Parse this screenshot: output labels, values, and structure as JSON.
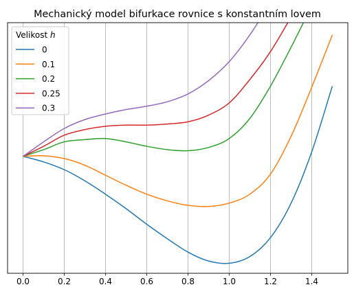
{
  "chart_data": {
    "type": "line",
    "title": "Mechanický model bifurkace rovnice s konstantním lovem",
    "xlabel": "",
    "ylabel": "",
    "xlim": [
      -0.075,
      1.575
    ],
    "ylim": [
      -1.05,
      1.2
    ],
    "x_ticks": [
      0.0,
      0.2,
      0.4,
      0.6,
      0.8,
      1.0,
      1.2,
      1.4
    ],
    "x_tick_labels": [
      "0.0",
      "0.2",
      "0.4",
      "0.6",
      "0.8",
      "1.0",
      "1.2",
      "1.4"
    ],
    "y_ticks_visible": false,
    "grid": "vertical",
    "legend": {
      "title_prefix": "Velikost ",
      "title_var": "h",
      "position": "top-left"
    },
    "series": [
      {
        "name": "0",
        "color": "#1f77b4",
        "x": [
          0,
          0.1,
          0.2,
          0.3,
          0.4,
          0.5,
          0.6,
          0.7,
          0.8,
          0.9,
          1.0,
          1.1,
          1.2,
          1.3,
          1.4,
          1.5
        ],
        "y": [
          0,
          -0.05,
          -0.12,
          -0.22,
          -0.34,
          -0.47,
          -0.61,
          -0.74,
          -0.86,
          -0.94,
          -0.96,
          -0.9,
          -0.73,
          -0.42,
          0.04,
          0.63
        ]
      },
      {
        "name": "0.1",
        "color": "#ff7f0e",
        "x": [
          0,
          0.1,
          0.2,
          0.3,
          0.4,
          0.5,
          0.6,
          0.7,
          0.8,
          0.9,
          1.0,
          1.1,
          1.2,
          1.3,
          1.4,
          1.5
        ],
        "y": [
          0,
          0.005,
          -0.02,
          -0.08,
          -0.17,
          -0.26,
          -0.34,
          -0.4,
          -0.44,
          -0.45,
          -0.42,
          -0.34,
          -0.16,
          0.18,
          0.62,
          1.09
        ]
      },
      {
        "name": "0.2",
        "color": "#2ca02c",
        "x": [
          0,
          0.1,
          0.2,
          0.3,
          0.4,
          0.5,
          0.6,
          0.7,
          0.8,
          0.9,
          1.0,
          1.1,
          1.2,
          1.3,
          1.4
        ],
        "y": [
          0,
          0.06,
          0.13,
          0.15,
          0.16,
          0.13,
          0.09,
          0.06,
          0.05,
          0.08,
          0.16,
          0.34,
          0.63,
          0.98,
          1.35
        ]
      },
      {
        "name": "0.25",
        "color": "#d62728",
        "x": [
          0,
          0.1,
          0.2,
          0.3,
          0.4,
          0.5,
          0.6,
          0.7,
          0.8,
          0.9,
          1.0,
          1.1,
          1.2,
          1.3
        ],
        "y": [
          0,
          0.09,
          0.19,
          0.24,
          0.27,
          0.28,
          0.28,
          0.29,
          0.31,
          0.37,
          0.48,
          0.69,
          0.94,
          1.25
        ]
      },
      {
        "name": "0.3",
        "color": "#9467bd",
        "x": [
          0,
          0.1,
          0.2,
          0.3,
          0.4,
          0.5,
          0.6,
          0.7,
          0.8,
          0.9,
          1.0,
          1.1,
          1.2
        ],
        "y": [
          0,
          0.13,
          0.25,
          0.33,
          0.38,
          0.42,
          0.45,
          0.49,
          0.56,
          0.68,
          0.85,
          1.09,
          1.38
        ]
      }
    ]
  }
}
